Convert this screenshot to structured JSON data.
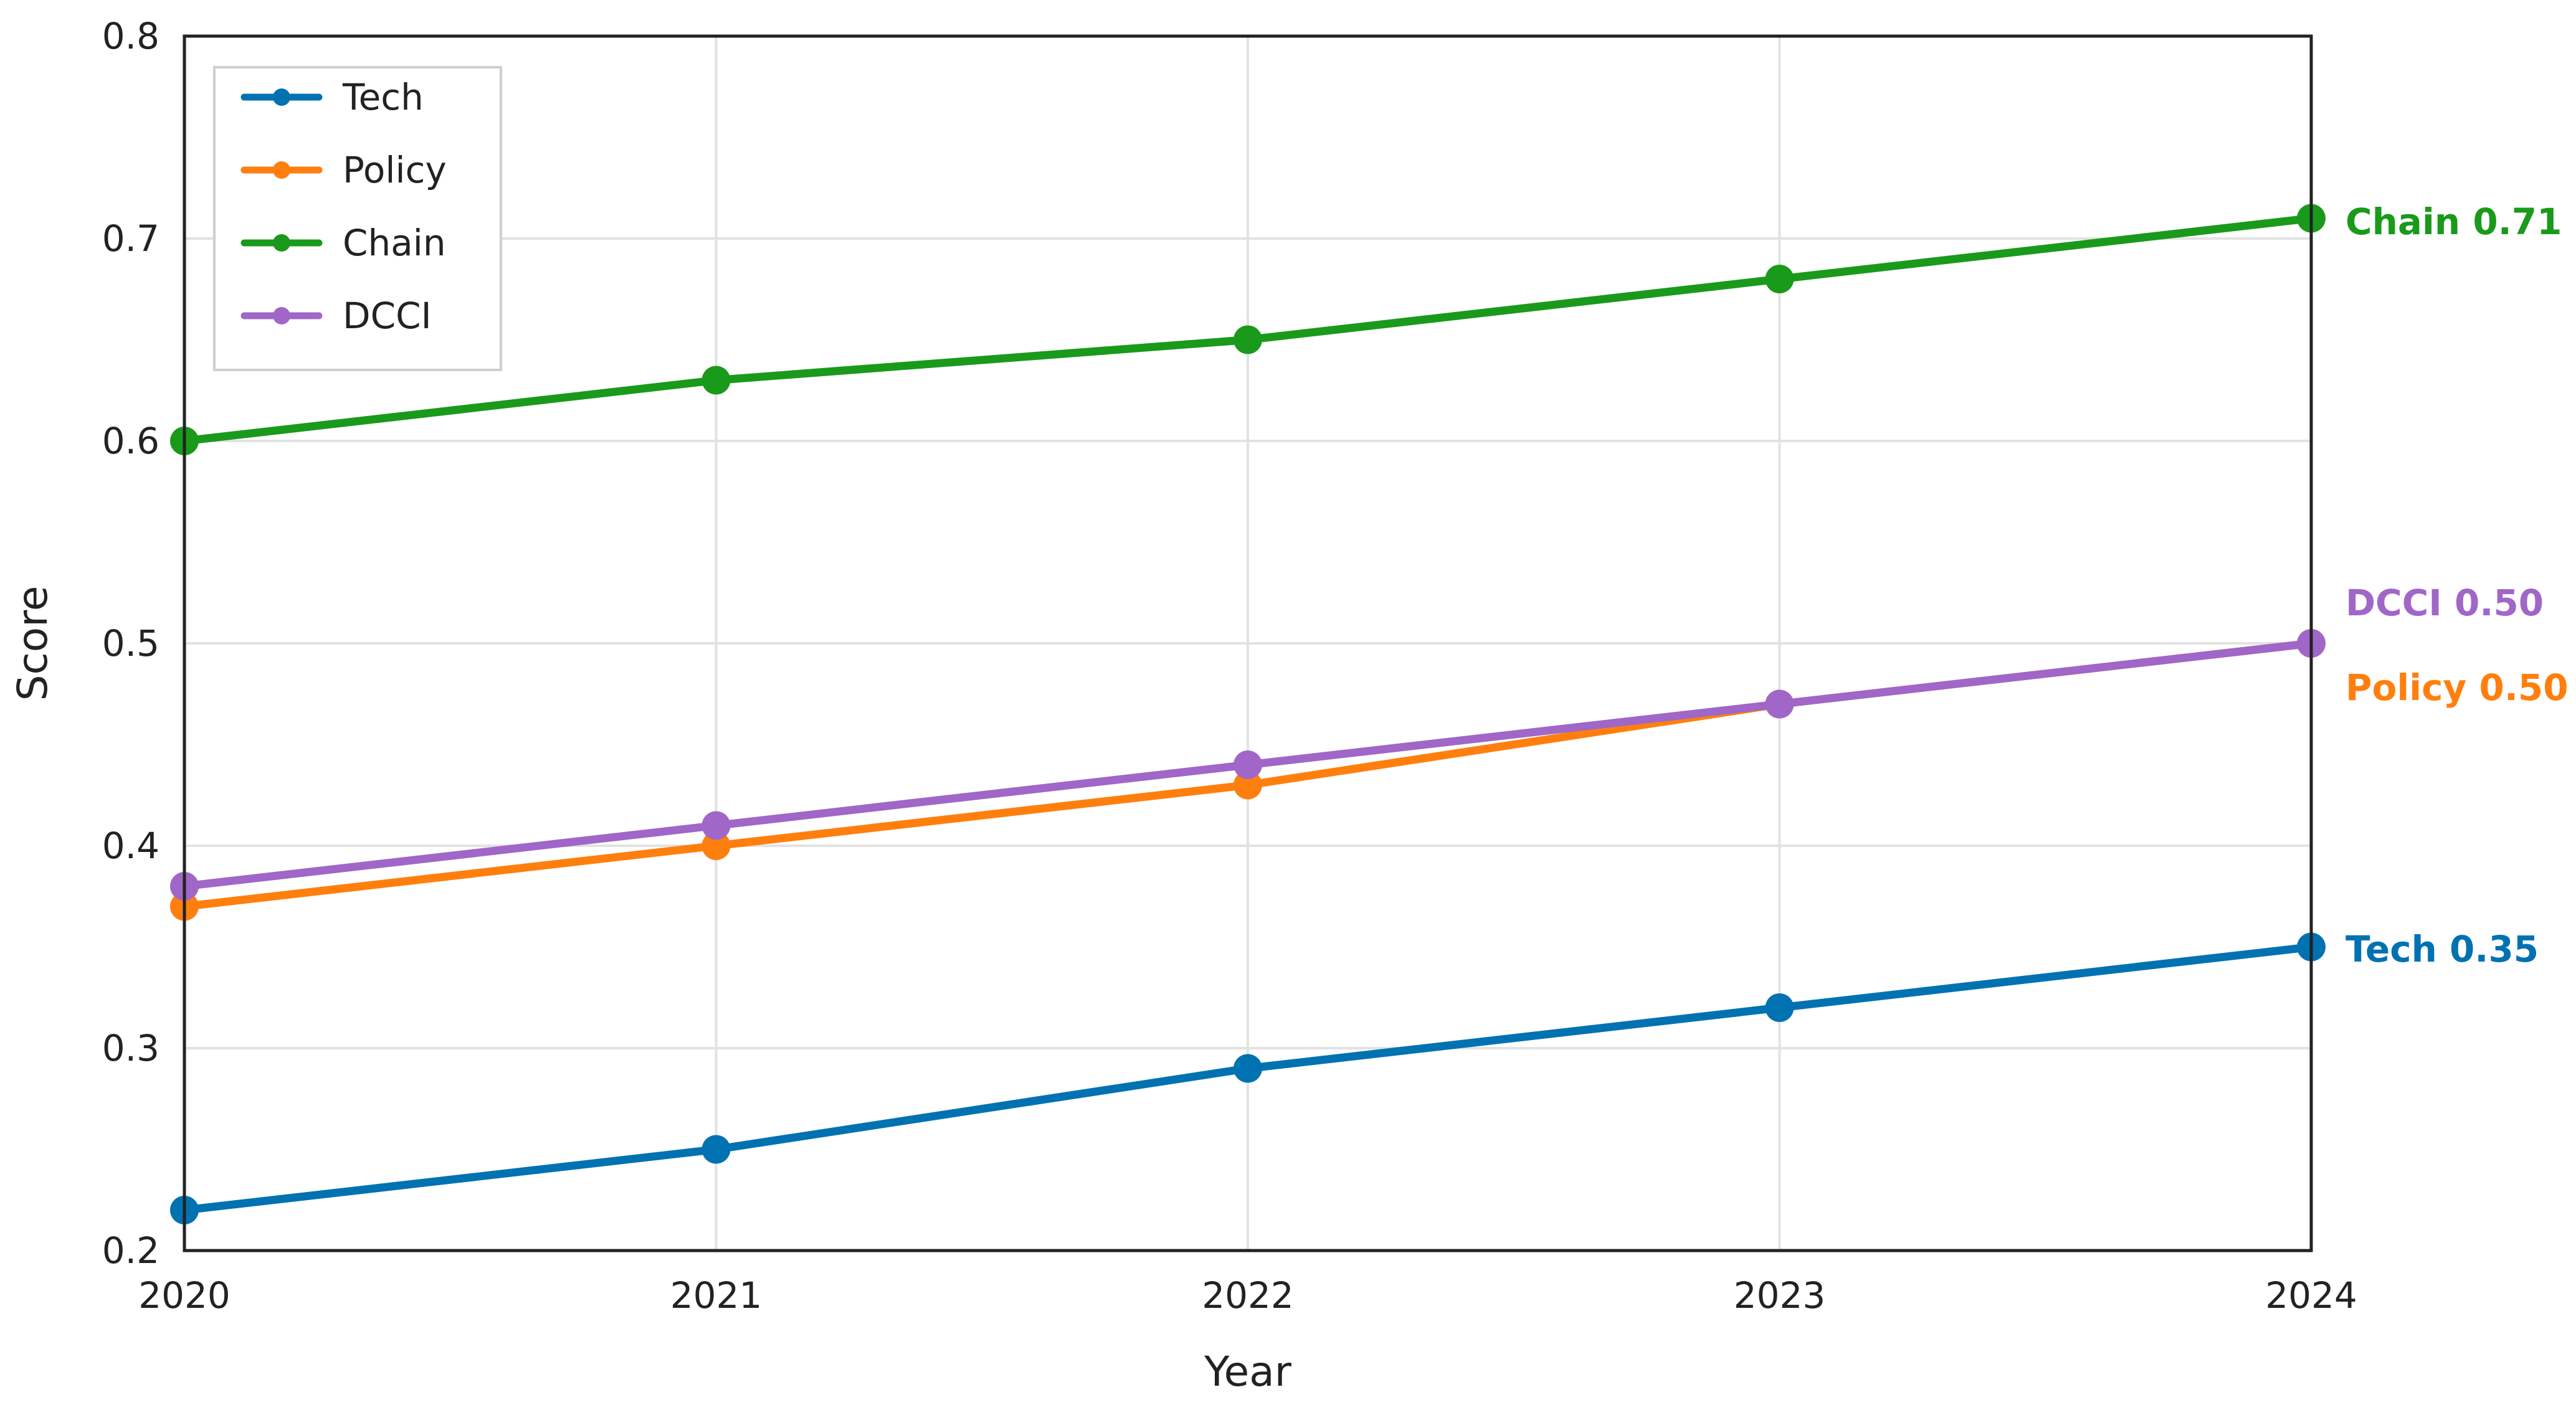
{
  "chart_data": {
    "type": "line",
    "xlabel": "Year",
    "ylabel": "Score",
    "x": [
      2020,
      2021,
      2022,
      2023,
      2024
    ],
    "xlim": [
      2020,
      2024
    ],
    "ylim": [
      0.2,
      0.8
    ],
    "yticks": [
      "0.2",
      "0.3",
      "0.4",
      "0.5",
      "0.6",
      "0.7",
      "0.8"
    ],
    "xticks": [
      "2020",
      "2021",
      "2022",
      "2023",
      "2024"
    ],
    "grid": true,
    "legend_position": "top-left",
    "series": [
      {
        "name": "Tech",
        "color": "#0072b2",
        "values": [
          0.22,
          0.25,
          0.29,
          0.32,
          0.35
        ],
        "end_label": "Tech 0.35"
      },
      {
        "name": "Policy",
        "color": "#ff7f0e",
        "values": [
          0.37,
          0.4,
          0.43,
          0.47,
          0.5
        ],
        "end_label": "Policy 0.50"
      },
      {
        "name": "Chain",
        "color": "#1a9a1a",
        "values": [
          0.6,
          0.63,
          0.65,
          0.68,
          0.71
        ],
        "end_label": "Chain 0.71"
      },
      {
        "name": "DCCI",
        "color": "#a066c8",
        "values": [
          0.38,
          0.41,
          0.44,
          0.47,
          0.5
        ],
        "end_label": "DCCI 0.50"
      }
    ]
  }
}
